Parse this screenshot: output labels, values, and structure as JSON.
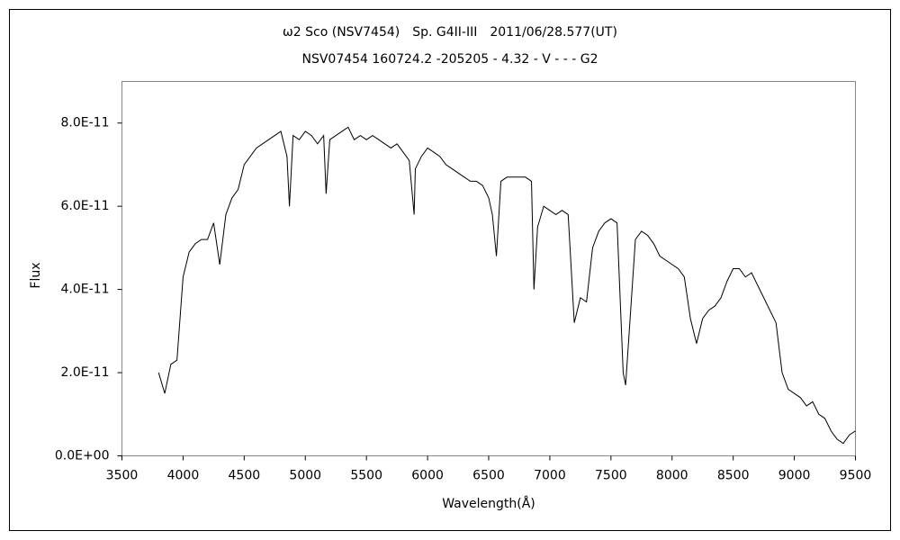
{
  "chart_data": {
    "type": "line",
    "title": "ω2 Sco (NSV7454)　Sp. G4II-III　2011/06/28.577(UT)",
    "subtitle": "NSV07454 160724.2 -205205 - 4.32 - V - - - G2",
    "x_label": "Wavelength(Å)",
    "y_label": "Flux",
    "color": "#000000",
    "xlim": [
      3500,
      9500
    ],
    "xticks": [
      3500,
      4000,
      4500,
      5000,
      5500,
      6000,
      6500,
      7000,
      7500,
      8000,
      8500,
      9000,
      9500
    ],
    "ylim": [
      0,
      9e-11
    ],
    "yticks": [
      {
        "value": 0,
        "label": "0.0E+00"
      },
      {
        "value": 2e-11,
        "label": "2.0E-11"
      },
      {
        "value": 4e-11,
        "label": "4.0E-11"
      },
      {
        "value": 6e-11,
        "label": "6.0E-11"
      },
      {
        "value": 8e-11,
        "label": "8.0E-11"
      }
    ],
    "x": [
      3800,
      3850,
      3900,
      3950,
      4000,
      4050,
      4100,
      4150,
      4200,
      4250,
      4300,
      4350,
      4400,
      4450,
      4500,
      4550,
      4600,
      4650,
      4700,
      4750,
      4800,
      4850,
      4870,
      4900,
      4950,
      5000,
      5050,
      5100,
      5150,
      5170,
      5200,
      5250,
      5300,
      5350,
      5400,
      5450,
      5500,
      5550,
      5600,
      5650,
      5700,
      5750,
      5800,
      5850,
      5890,
      5900,
      5950,
      6000,
      6050,
      6100,
      6150,
      6200,
      6250,
      6300,
      6350,
      6400,
      6450,
      6500,
      6530,
      6563,
      6600,
      6650,
      6700,
      6750,
      6800,
      6850,
      6870,
      6900,
      6950,
      7000,
      7050,
      7100,
      7150,
      7200,
      7250,
      7300,
      7350,
      7400,
      7450,
      7500,
      7550,
      7600,
      7620,
      7650,
      7700,
      7750,
      7800,
      7850,
      7900,
      7950,
      8000,
      8050,
      8100,
      8150,
      8200,
      8250,
      8300,
      8350,
      8400,
      8450,
      8500,
      8550,
      8600,
      8650,
      8700,
      8750,
      8800,
      8850,
      8900,
      8950,
      9000,
      9050,
      9100,
      9150,
      9200,
      9250,
      9300,
      9350,
      9400,
      9450,
      9500
    ],
    "values": [
      2e-11,
      1.5e-11,
      2.2e-11,
      2.3e-11,
      4.3e-11,
      4.9e-11,
      5.1e-11,
      5.2e-11,
      5.2e-11,
      5.6e-11,
      4.6e-11,
      5.8e-11,
      6.2e-11,
      6.4e-11,
      7e-11,
      7.2e-11,
      7.4e-11,
      7.5e-11,
      7.6e-11,
      7.7e-11,
      7.8e-11,
      7.2e-11,
      6e-11,
      7.7e-11,
      7.6e-11,
      7.8e-11,
      7.7e-11,
      7.5e-11,
      7.7e-11,
      6.3e-11,
      7.6e-11,
      7.7e-11,
      7.8e-11,
      7.9e-11,
      7.6e-11,
      7.7e-11,
      7.6e-11,
      7.7e-11,
      7.6e-11,
      7.5e-11,
      7.4e-11,
      7.5e-11,
      7.3e-11,
      7.1e-11,
      5.8e-11,
      6.9e-11,
      7.2e-11,
      7.4e-11,
      7.3e-11,
      7.2e-11,
      7e-11,
      6.9e-11,
      6.8e-11,
      6.7e-11,
      6.6e-11,
      6.6e-11,
      6.5e-11,
      6.2e-11,
      5.8e-11,
      4.8e-11,
      6.6e-11,
      6.7e-11,
      6.7e-11,
      6.7e-11,
      6.7e-11,
      6.6e-11,
      4e-11,
      5.5e-11,
      6e-11,
      5.9e-11,
      5.8e-11,
      5.9e-11,
      5.8e-11,
      3.2e-11,
      3.8e-11,
      3.7e-11,
      5e-11,
      5.4e-11,
      5.6e-11,
      5.7e-11,
      5.6e-11,
      2e-11,
      1.7e-11,
      3e-11,
      5.2e-11,
      5.4e-11,
      5.3e-11,
      5.1e-11,
      4.8e-11,
      4.7e-11,
      4.6e-11,
      4.5e-11,
      4.3e-11,
      3.3e-11,
      2.7e-11,
      3.3e-11,
      3.5e-11,
      3.6e-11,
      3.8e-11,
      4.2e-11,
      4.5e-11,
      4.5e-11,
      4.3e-11,
      4.4e-11,
      4.1e-11,
      3.8e-11,
      3.5e-11,
      3.2e-11,
      2e-11,
      1.6e-11,
      1.5e-11,
      1.4e-11,
      1.2e-11,
      1.3e-11,
      1e-11,
      9e-12,
      6e-12,
      4e-12,
      3e-12,
      5e-12,
      6e-12
    ]
  }
}
